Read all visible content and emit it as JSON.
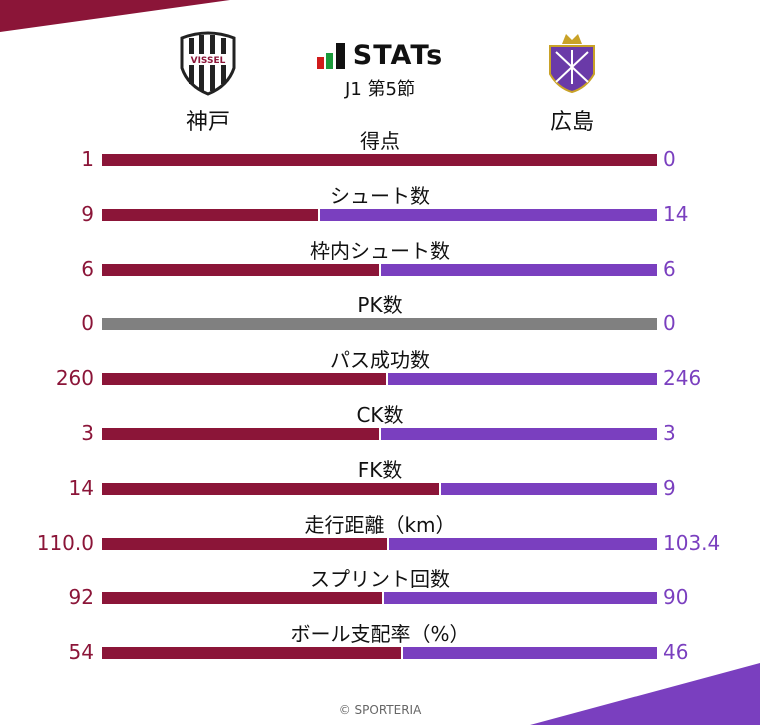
{
  "header": {
    "brand": "STATs",
    "round": "J1 第5節"
  },
  "teams": {
    "home": {
      "name": "神戸",
      "logo_text": "VISSEL"
    },
    "away": {
      "name": "広島"
    }
  },
  "colors": {
    "home": "#8b1538",
    "away": "#7a3fbf",
    "neutral": "#808080"
  },
  "chart_data": {
    "type": "bar",
    "categories": [
      "得点",
      "シュート数",
      "枠内シュート数",
      "PK数",
      "パス成功数",
      "CK数",
      "FK数",
      "走行距離（km）",
      "スプリント回数",
      "ボール支配率（%）"
    ],
    "series": [
      {
        "name": "神戸",
        "values": [
          "1",
          "9",
          "6",
          "0",
          "260",
          "3",
          "14",
          "110.0",
          "92",
          "54"
        ]
      },
      {
        "name": "広島",
        "values": [
          "0",
          "14",
          "6",
          "0",
          "246",
          "3",
          "9",
          "103.4",
          "90",
          "46"
        ]
      }
    ]
  },
  "footer": {
    "copyright": "© SPORTERIA"
  }
}
